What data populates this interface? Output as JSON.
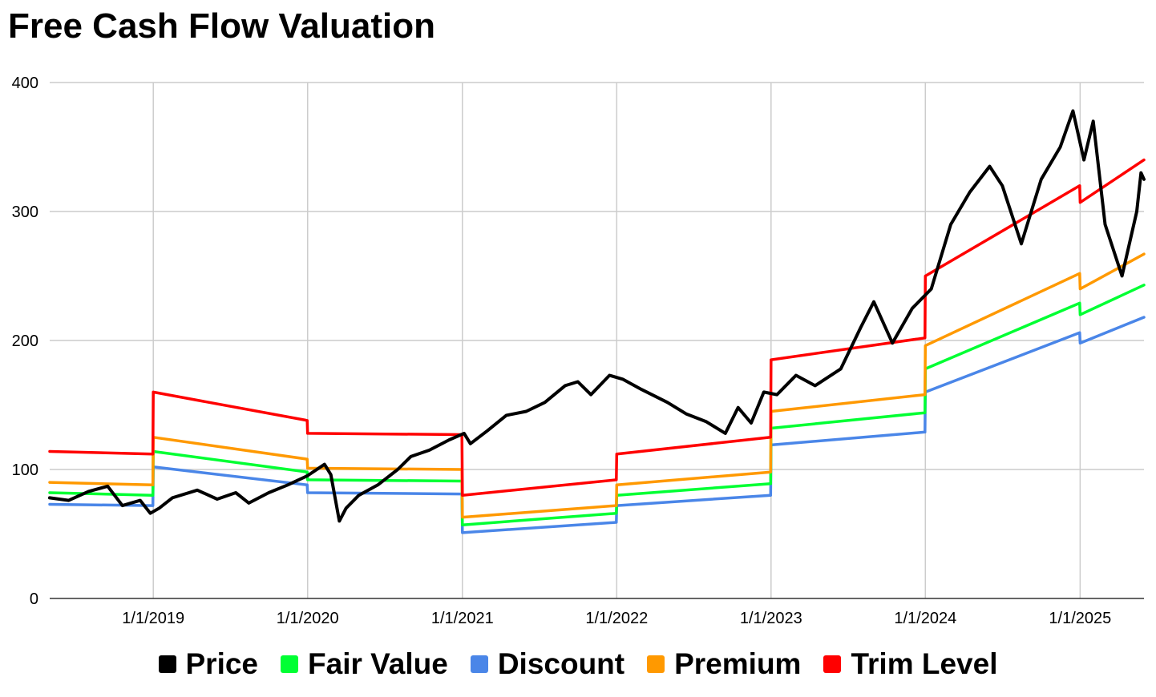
{
  "chart_data": {
    "type": "line",
    "title": "Free Cash Flow Valuation",
    "xlabel": "",
    "ylabel": "",
    "xlim": [
      "2018-05-01",
      "2025-06-01"
    ],
    "ylim": [
      0,
      400
    ],
    "grid": true,
    "legend_position": "bottom",
    "x_ticks": [
      "1/1/2019",
      "1/1/2020",
      "1/1/2021",
      "1/1/2022",
      "1/1/2023",
      "1/1/2024",
      "1/1/2025"
    ],
    "x_tick_dates": [
      "2019-01-01",
      "2020-01-01",
      "2021-01-01",
      "2022-01-01",
      "2023-01-01",
      "2024-01-01",
      "2025-01-01"
    ],
    "y_ticks": [
      0,
      100,
      200,
      300,
      400
    ],
    "series": [
      {
        "name": "Price",
        "color": "#000000",
        "points": [
          [
            "2018-05-01",
            78
          ],
          [
            "2018-06-15",
            76
          ],
          [
            "2018-08-01",
            83
          ],
          [
            "2018-09-15",
            87
          ],
          [
            "2018-10-20",
            72
          ],
          [
            "2018-12-01",
            76
          ],
          [
            "2018-12-25",
            66
          ],
          [
            "2019-01-15",
            70
          ],
          [
            "2019-02-15",
            78
          ],
          [
            "2019-04-15",
            84
          ],
          [
            "2019-06-01",
            77
          ],
          [
            "2019-07-15",
            82
          ],
          [
            "2019-08-15",
            74
          ],
          [
            "2019-10-01",
            82
          ],
          [
            "2019-11-15",
            88
          ],
          [
            "2019-12-31",
            95
          ],
          [
            "2020-02-10",
            104
          ],
          [
            "2020-02-25",
            96
          ],
          [
            "2020-03-16",
            60
          ],
          [
            "2020-04-01",
            70
          ],
          [
            "2020-05-01",
            80
          ],
          [
            "2020-06-15",
            88
          ],
          [
            "2020-08-01",
            100
          ],
          [
            "2020-09-01",
            110
          ],
          [
            "2020-10-15",
            115
          ],
          [
            "2020-12-01",
            123
          ],
          [
            "2021-01-05",
            128
          ],
          [
            "2021-01-20",
            120
          ],
          [
            "2021-03-01",
            130
          ],
          [
            "2021-04-15",
            142
          ],
          [
            "2021-06-01",
            145
          ],
          [
            "2021-07-15",
            152
          ],
          [
            "2021-09-01",
            165
          ],
          [
            "2021-10-01",
            168
          ],
          [
            "2021-11-01",
            158
          ],
          [
            "2021-12-15",
            173
          ],
          [
            "2022-01-15",
            170
          ],
          [
            "2022-03-01",
            162
          ],
          [
            "2022-05-01",
            152
          ],
          [
            "2022-06-15",
            143
          ],
          [
            "2022-08-01",
            137
          ],
          [
            "2022-09-15",
            128
          ],
          [
            "2022-10-15",
            148
          ],
          [
            "2022-11-15",
            136
          ],
          [
            "2022-12-15",
            160
          ],
          [
            "2023-01-15",
            158
          ],
          [
            "2023-03-01",
            173
          ],
          [
            "2023-04-15",
            165
          ],
          [
            "2023-06-15",
            178
          ],
          [
            "2023-08-01",
            210
          ],
          [
            "2023-09-01",
            230
          ],
          [
            "2023-10-15",
            198
          ],
          [
            "2023-12-01",
            225
          ],
          [
            "2024-01-15",
            240
          ],
          [
            "2024-03-01",
            290
          ],
          [
            "2024-04-15",
            315
          ],
          [
            "2024-06-01",
            335
          ],
          [
            "2024-07-01",
            320
          ],
          [
            "2024-08-15",
            275
          ],
          [
            "2024-10-01",
            325
          ],
          [
            "2024-11-15",
            350
          ],
          [
            "2024-12-15",
            378
          ],
          [
            "2025-01-10",
            340
          ],
          [
            "2025-02-01",
            370
          ],
          [
            "2025-03-01",
            290
          ],
          [
            "2025-04-10",
            250
          ],
          [
            "2025-05-15",
            300
          ],
          [
            "2025-05-25",
            330
          ],
          [
            "2025-06-01",
            325
          ]
        ]
      },
      {
        "name": "Fair Value",
        "color": "#00ff33",
        "points": [
          [
            "2018-05-01",
            82
          ],
          [
            "2018-12-31",
            80
          ],
          [
            "2019-01-01",
            114
          ],
          [
            "2019-12-31",
            98
          ],
          [
            "2020-01-01",
            92
          ],
          [
            "2020-12-31",
            91
          ],
          [
            "2021-01-01",
            57
          ],
          [
            "2021-12-31",
            66
          ],
          [
            "2022-01-01",
            80
          ],
          [
            "2022-12-31",
            89
          ],
          [
            "2023-01-01",
            132
          ],
          [
            "2023-12-31",
            144
          ],
          [
            "2024-01-01",
            178
          ],
          [
            "2024-12-31",
            229
          ],
          [
            "2025-01-01",
            220
          ],
          [
            "2025-06-01",
            243
          ]
        ]
      },
      {
        "name": "Discount",
        "color": "#4a86e8",
        "points": [
          [
            "2018-05-01",
            73
          ],
          [
            "2018-12-31",
            72
          ],
          [
            "2019-01-01",
            102
          ],
          [
            "2019-12-31",
            88
          ],
          [
            "2020-01-01",
            82
          ],
          [
            "2020-12-31",
            81
          ],
          [
            "2021-01-01",
            51
          ],
          [
            "2021-12-31",
            59
          ],
          [
            "2022-01-01",
            72
          ],
          [
            "2022-12-31",
            80
          ],
          [
            "2023-01-01",
            119
          ],
          [
            "2023-12-31",
            129
          ],
          [
            "2024-01-01",
            160
          ],
          [
            "2024-12-31",
            206
          ],
          [
            "2025-01-01",
            198
          ],
          [
            "2025-06-01",
            218
          ]
        ]
      },
      {
        "name": "Premium",
        "color": "#ff9900",
        "points": [
          [
            "2018-05-01",
            90
          ],
          [
            "2018-12-31",
            88
          ],
          [
            "2019-01-01",
            125
          ],
          [
            "2019-12-31",
            108
          ],
          [
            "2020-01-01",
            101
          ],
          [
            "2020-12-31",
            100
          ],
          [
            "2021-01-01",
            63
          ],
          [
            "2021-12-31",
            72
          ],
          [
            "2022-01-01",
            88
          ],
          [
            "2022-12-31",
            98
          ],
          [
            "2023-01-01",
            145
          ],
          [
            "2023-12-31",
            158
          ],
          [
            "2024-01-01",
            196
          ],
          [
            "2024-12-31",
            252
          ],
          [
            "2025-01-01",
            240
          ],
          [
            "2025-06-01",
            267
          ]
        ]
      },
      {
        "name": "Trim Level",
        "color": "#ff0000",
        "points": [
          [
            "2018-05-01",
            114
          ],
          [
            "2018-12-31",
            112
          ],
          [
            "2019-01-01",
            160
          ],
          [
            "2019-12-31",
            138
          ],
          [
            "2020-01-01",
            128
          ],
          [
            "2020-12-31",
            127
          ],
          [
            "2021-01-01",
            80
          ],
          [
            "2021-12-31",
            92
          ],
          [
            "2022-01-01",
            112
          ],
          [
            "2022-12-31",
            125
          ],
          [
            "2023-01-01",
            185
          ],
          [
            "2023-12-31",
            202
          ],
          [
            "2024-01-01",
            250
          ],
          [
            "2024-12-31",
            320
          ],
          [
            "2025-01-01",
            307
          ],
          [
            "2025-06-01",
            340
          ]
        ]
      }
    ]
  }
}
